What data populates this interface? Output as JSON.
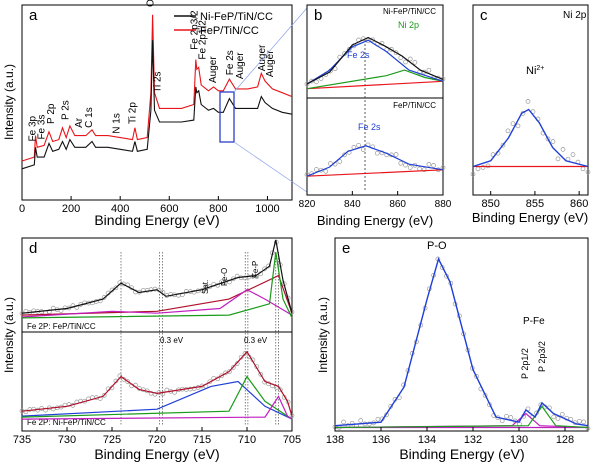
{
  "colors": {
    "black": "#111111",
    "red": "#e8151b",
    "blue": "#1f3fd6",
    "green": "#1a9b1a",
    "purple": "#c01fc0",
    "darkred": "#b0102a",
    "marker": "#999999",
    "select": "#2a3fc9"
  },
  "chart_data": [
    {
      "panel": "a",
      "type": "line",
      "xlabel": "Binding Energy (eV)",
      "ylabel": "Intensity (a.u.)",
      "xlim": [
        0,
        1100
      ],
      "xticks": [
        "0",
        "200",
        "400",
        "600",
        "800",
        "1000"
      ],
      "legend_position": "top-right",
      "series": [
        {
          "name": "Ni-FeP/TiN/CC",
          "color": "black",
          "points": [
            [
              0,
              0.16
            ],
            [
              50,
              0.18
            ],
            [
              55,
              0.27
            ],
            [
              62,
              0.22
            ],
            [
              90,
              0.22
            ],
            [
              110,
              0.29
            ],
            [
              125,
              0.25
            ],
            [
              150,
              0.26
            ],
            [
              165,
              0.3
            ],
            [
              180,
              0.26
            ],
            [
              195,
              0.31
            ],
            [
              215,
              0.27
            ],
            [
              260,
              0.27
            ],
            [
              285,
              0.3
            ],
            [
              300,
              0.27
            ],
            [
              350,
              0.27
            ],
            [
              400,
              0.26
            ],
            [
              450,
              0.25
            ],
            [
              460,
              0.3
            ],
            [
              470,
              0.25
            ],
            [
              510,
              0.26
            ],
            [
              525,
              0.46
            ],
            [
              532,
              0.82
            ],
            [
              540,
              0.46
            ],
            [
              560,
              0.4
            ],
            [
              600,
              0.4
            ],
            [
              650,
              0.4
            ],
            [
              700,
              0.41
            ],
            [
              708,
              0.58
            ],
            [
              712,
              0.55
            ],
            [
              720,
              0.56
            ],
            [
              730,
              0.49
            ],
            [
              760,
              0.46
            ],
            [
              780,
              0.47
            ],
            [
              800,
              0.45
            ],
            [
              820,
              0.45
            ],
            [
              845,
              0.52
            ],
            [
              870,
              0.47
            ],
            [
              920,
              0.47
            ],
            [
              960,
              0.47
            ],
            [
              975,
              0.53
            ],
            [
              990,
              0.5
            ],
            [
              1020,
              0.47
            ],
            [
              1060,
              0.45
            ],
            [
              1100,
              0.44
            ]
          ]
        },
        {
          "name": "FeP/TiN/CC",
          "color": "red",
          "points": [
            [
              0,
              0.2
            ],
            [
              50,
              0.22
            ],
            [
              55,
              0.33
            ],
            [
              62,
              0.27
            ],
            [
              90,
              0.28
            ],
            [
              110,
              0.35
            ],
            [
              125,
              0.3
            ],
            [
              150,
              0.31
            ],
            [
              165,
              0.37
            ],
            [
              180,
              0.32
            ],
            [
              195,
              0.38
            ],
            [
              215,
              0.33
            ],
            [
              260,
              0.33
            ],
            [
              285,
              0.36
            ],
            [
              300,
              0.33
            ],
            [
              350,
              0.33
            ],
            [
              400,
              0.32
            ],
            [
              450,
              0.31
            ],
            [
              460,
              0.37
            ],
            [
              470,
              0.31
            ],
            [
              510,
              0.32
            ],
            [
              525,
              0.55
            ],
            [
              532,
              0.95
            ],
            [
              540,
              0.55
            ],
            [
              560,
              0.47
            ],
            [
              600,
              0.47
            ],
            [
              650,
              0.47
            ],
            [
              700,
              0.49
            ],
            [
              708,
              0.72
            ],
            [
              712,
              0.67
            ],
            [
              720,
              0.68
            ],
            [
              730,
              0.59
            ],
            [
              760,
              0.56
            ],
            [
              780,
              0.58
            ],
            [
              800,
              0.56
            ],
            [
              820,
              0.56
            ],
            [
              845,
              0.62
            ],
            [
              870,
              0.57
            ],
            [
              920,
              0.57
            ],
            [
              960,
              0.58
            ],
            [
              975,
              0.65
            ],
            [
              990,
              0.61
            ],
            [
              1020,
              0.57
            ],
            [
              1060,
              0.55
            ],
            [
              1100,
              0.53
            ]
          ]
        }
      ],
      "annotations": [
        {
          "text": "Fe 3p",
          "x": 55,
          "y": 0.3
        },
        {
          "text": "Fe 3s",
          "x": 92,
          "y": 0.31
        },
        {
          "text": "P 2p",
          "x": 130,
          "y": 0.39
        },
        {
          "text": "P 2s",
          "x": 190,
          "y": 0.41
        },
        {
          "text": "Ar",
          "x": 245,
          "y": 0.37
        },
        {
          "text": "C 1s",
          "x": 285,
          "y": 0.37
        },
        {
          "text": "N 1s",
          "x": 398,
          "y": 0.34
        },
        {
          "text": "Ti 2p",
          "x": 462,
          "y": 0.39
        },
        {
          "text": "Ti 2s",
          "x": 565,
          "y": 0.55
        },
        {
          "text": "O 1s",
          "x": 535,
          "y": 0.99
        },
        {
          "text": "Fe 2p3/2",
          "x": 715,
          "y": 0.77
        },
        {
          "text": "Fe 2p1/2",
          "x": 748,
          "y": 0.72
        },
        {
          "text": "Auger",
          "x": 790,
          "y": 0.6
        },
        {
          "text": "Fe 2s",
          "x": 860,
          "y": 0.64
        },
        {
          "text": "Auger",
          "x": 900,
          "y": 0.62
        },
        {
          "text": "Auger",
          "x": 990,
          "y": 0.66
        },
        {
          "text": "Auger",
          "x": 1022,
          "y": 0.63
        }
      ]
    },
    {
      "panel": "b",
      "type": "line",
      "xlabel": "Binding Energy (eV)",
      "xlim": [
        820,
        880
      ],
      "xticks": [
        "820",
        "840",
        "860",
        "880"
      ],
      "subplots": [
        {
          "label": "Ni-FeP/TiN/CC",
          "fit": [
            [
              820,
              0.15
            ],
            [
              830,
              0.28
            ],
            [
              840,
              0.57
            ],
            [
              847,
              0.65
            ],
            [
              855,
              0.55
            ],
            [
              862,
              0.45
            ],
            [
              870,
              0.3
            ],
            [
              880,
              0.2
            ]
          ],
          "fe_component": [
            [
              820,
              0.15
            ],
            [
              830,
              0.3
            ],
            [
              840,
              0.55
            ],
            [
              847,
              0.62
            ],
            [
              855,
              0.5
            ],
            [
              865,
              0.3
            ],
            [
              880,
              0.18
            ]
          ],
          "ni_component": [
            [
              820,
              0.1
            ],
            [
              855,
              0.24
            ],
            [
              863,
              0.3
            ],
            [
              872,
              0.22
            ],
            [
              880,
              0.18
            ]
          ],
          "baseline": [
            [
              820,
              0.1
            ],
            [
              880,
              0.18
            ]
          ],
          "annotations": [
            {
              "text": "Fe 2s",
              "x": 840,
              "y": 0.4
            },
            {
              "text": "Ni 2p",
              "x": 866,
              "y": 0.55
            }
          ]
        },
        {
          "label": "FeP/TiN/CC",
          "fit": [
            [
              820,
              0.15
            ],
            [
              830,
              0.25
            ],
            [
              838,
              0.42
            ],
            [
              846,
              0.48
            ],
            [
              855,
              0.4
            ],
            [
              865,
              0.28
            ],
            [
              880,
              0.22
            ]
          ],
          "baseline": [
            [
              820,
              0.15
            ],
            [
              880,
              0.22
            ]
          ],
          "annotations": [
            {
              "text": "Fe 2s",
              "x": 846,
              "y": 0.58
            }
          ]
        }
      ]
    },
    {
      "panel": "c",
      "type": "line",
      "xlabel": "Binding Energy (eV)",
      "title": "Ni 2p",
      "xlim": [
        848,
        861
      ],
      "xticks": [
        "850",
        "855",
        "860"
      ],
      "series": [
        {
          "name": "fit",
          "color": "blue",
          "points": [
            [
              848,
              0.15
            ],
            [
              850,
              0.18
            ],
            [
              852,
              0.3
            ],
            [
              853.5,
              0.43
            ],
            [
              854.3,
              0.45
            ],
            [
              855.5,
              0.38
            ],
            [
              857,
              0.25
            ],
            [
              858.5,
              0.18
            ],
            [
              861,
              0.15
            ]
          ]
        }
      ],
      "baseline": [
        [
          848,
          0.15
        ],
        [
          861,
          0.15
        ]
      ],
      "annotations": [
        {
          "text": "Ni2+",
          "x": 854.3,
          "y": 0.65
        }
      ]
    },
    {
      "panel": "d",
      "type": "line",
      "xlabel": "Binding Energy (eV)",
      "ylabel": "Intensity (a.u.)",
      "xlim": [
        735,
        705
      ],
      "xticks": [
        "735",
        "730",
        "725",
        "720",
        "715",
        "710",
        "705"
      ],
      "subplots": [
        {
          "label": "Fe 2P: FeP/TiN/CC",
          "fit": [
            [
              735,
              0.2
            ],
            [
              730,
              0.25
            ],
            [
              726,
              0.35
            ],
            [
              724,
              0.52
            ],
            [
              722,
              0.42
            ],
            [
              720,
              0.45
            ],
            [
              719,
              0.38
            ],
            [
              715,
              0.45
            ],
            [
              711,
              0.58
            ],
            [
              709,
              0.6
            ],
            [
              707.5,
              0.7
            ],
            [
              706.8,
              0.98
            ],
            [
              706,
              0.55
            ],
            [
              705,
              0.2
            ]
          ],
          "annotations": [
            {
              "text": "Fe-O",
              "x": 710.2,
              "y": 0.72
            },
            {
              "text": "Sat.",
              "x": 714.5,
              "y": 0.55
            },
            {
              "text": "Fe-P",
              "x": 707.0,
              "y": 0.8
            }
          ]
        },
        {
          "label": "Fe 2P: Ni-FeP/TiN/CC",
          "fit": [
            [
              735,
              0.2
            ],
            [
              730,
              0.25
            ],
            [
              726,
              0.35
            ],
            [
              724,
              0.55
            ],
            [
              722,
              0.42
            ],
            [
              720,
              0.38
            ],
            [
              715,
              0.45
            ],
            [
              712,
              0.6
            ],
            [
              710,
              0.8
            ],
            [
              708,
              0.5
            ],
            [
              706.5,
              0.45
            ],
            [
              705.5,
              0.3
            ],
            [
              705,
              0.15
            ]
          ],
          "annotations": [
            {
              "text": "0.3 eV",
              "x": 719.5,
              "y": 0.9
            },
            {
              "text": "0.3 eV",
              "x": 709.0,
              "y": 0.9
            }
          ]
        }
      ]
    },
    {
      "panel": "e",
      "type": "line",
      "xlabel": "Binding Energy (eV)",
      "ylabel": "Intensity (a.u.)",
      "xlim": [
        138,
        127
      ],
      "xticks": [
        "138",
        "136",
        "134",
        "132",
        "130",
        "128"
      ],
      "series": [
        {
          "name": "fit",
          "color": "blue",
          "points": [
            [
              138,
              0.03
            ],
            [
              136,
              0.05
            ],
            [
              135,
              0.25
            ],
            [
              134,
              0.75
            ],
            [
              133.5,
              0.98
            ],
            [
              133,
              0.85
            ],
            [
              132,
              0.35
            ],
            [
              131,
              0.08
            ],
            [
              130,
              0.05
            ],
            [
              129.7,
              0.12
            ],
            [
              129.3,
              0.08
            ],
            [
              129,
              0.16
            ],
            [
              128.5,
              0.1
            ],
            [
              127.5,
              0.04
            ],
            [
              127,
              0.03
            ]
          ]
        }
      ],
      "annotations": [
        {
          "text": "P-O",
          "x": 133.5,
          "y": 1.05
        },
        {
          "text": "P-Fe",
          "x": 129.3,
          "y": 0.45
        },
        {
          "text": "P 2p1/2",
          "x": 129.7,
          "y": 0.32
        },
        {
          "text": "P 2p3/2",
          "x": 129.0,
          "y": 0.35
        }
      ]
    }
  ],
  "panels": {
    "a": {
      "letter": "a",
      "ylabel": "Intensity (a.u.)",
      "xlabel": "Binding Energy (eV)",
      "ticks": [
        "0",
        "200",
        "400",
        "600",
        "800",
        "1000"
      ],
      "legend": [
        "Ni-FeP/TiN/CC",
        "FeP/TiN/CC"
      ],
      "peaks": [
        "Fe 3p",
        "Fe 3s",
        "P 2p",
        "P 2s",
        "Ar",
        "C 1s",
        "N 1s",
        "Ti 2p",
        "Ti 2s",
        "O 1s",
        "Fe 2p3/2",
        "Fe 2p1/2",
        "Auger",
        "Fe 2s",
        "Auger",
        "Auger",
        "Auger"
      ]
    },
    "b": {
      "letter": "b",
      "label_top": "Ni-FeP/TiN/CC",
      "label_bottom": "FeP/TiN/CC",
      "fe2s_top": "Fe 2s",
      "ni2p": "Ni 2p",
      "fe2s_bottom": "Fe 2s",
      "ticks": [
        "820",
        "840",
        "860",
        "880"
      ],
      "xlabel": "Binding Energy (eV)"
    },
    "c": {
      "letter": "c",
      "title": "Ni 2p",
      "peak": "Ni",
      "sup": "2+",
      "ticks": [
        "850",
        "855",
        "860"
      ],
      "xlabel": "Binding Energy (eV)"
    },
    "d": {
      "letter": "d",
      "ylabel": "Intensity (a.u.)",
      "xlabel": "Binding Energy (eV)",
      "label_top": "Fe 2P: FeP/TiN/CC",
      "label_bottom": "Fe 2P: Ni-FeP/TiN/CC",
      "feo": "Fe-O",
      "sat": "Sat.",
      "fep": "Fe-P",
      "shift1": "0.3 eV",
      "shift2": "0.3 eV",
      "ticks": [
        "735",
        "730",
        "725",
        "720",
        "715",
        "710",
        "705"
      ]
    },
    "e": {
      "letter": "e",
      "ylabel": "Intensity (a.u.)",
      "xlabel": "Binding Energy (eV)",
      "po": "P-O",
      "pfe": "P-Fe",
      "p12": "P 2p1/2",
      "p32": "P 2p3/2",
      "ticks": [
        "138",
        "136",
        "134",
        "132",
        "130",
        "128"
      ]
    }
  }
}
